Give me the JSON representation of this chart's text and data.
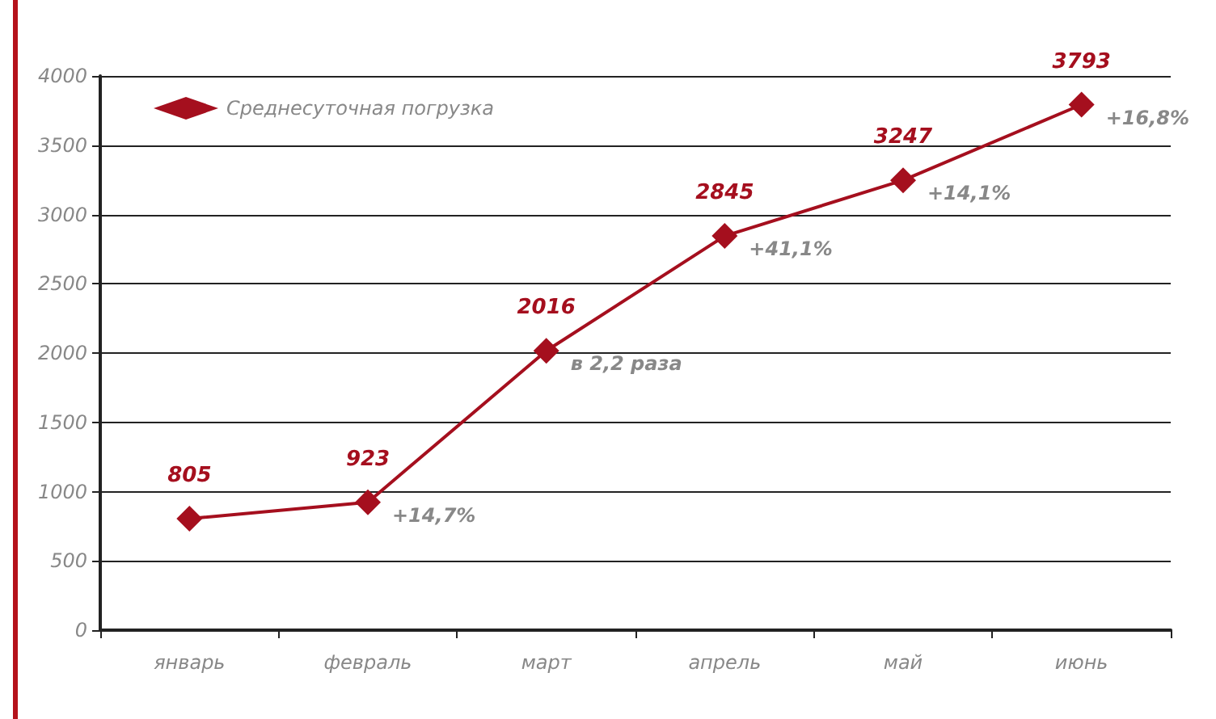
{
  "chart_data": {
    "type": "line",
    "categories": [
      "январь",
      "февраль",
      "март",
      "апрель",
      "май",
      "июнь"
    ],
    "series": [
      {
        "name": "Среднесуточная погрузка",
        "color": "#a50f1e",
        "values": [
          805,
          923,
          2016,
          2845,
          3247,
          3793
        ]
      }
    ],
    "ylim": [
      0,
      4000
    ],
    "yticks": [
      0,
      500,
      1000,
      1500,
      2000,
      2500,
      3000,
      3500,
      4000
    ],
    "grid": "y",
    "legend": "top left",
    "marker": "diamond",
    "line_style": "solid",
    "data_labels": true,
    "annotations": [
      {
        "text": "+14,7%",
        "x": "февраль",
        "y": 923
      },
      {
        "text": "в 2,2 раза",
        "x": "март",
        "y": 2016
      },
      {
        "text": "+41,1%",
        "x": "апрель",
        "y": 2845
      },
      {
        "text": "+14,1%",
        "x": "май",
        "y": 3247
      },
      {
        "text": "+16,8%",
        "x": "июнь",
        "y": 3793
      }
    ]
  }
}
